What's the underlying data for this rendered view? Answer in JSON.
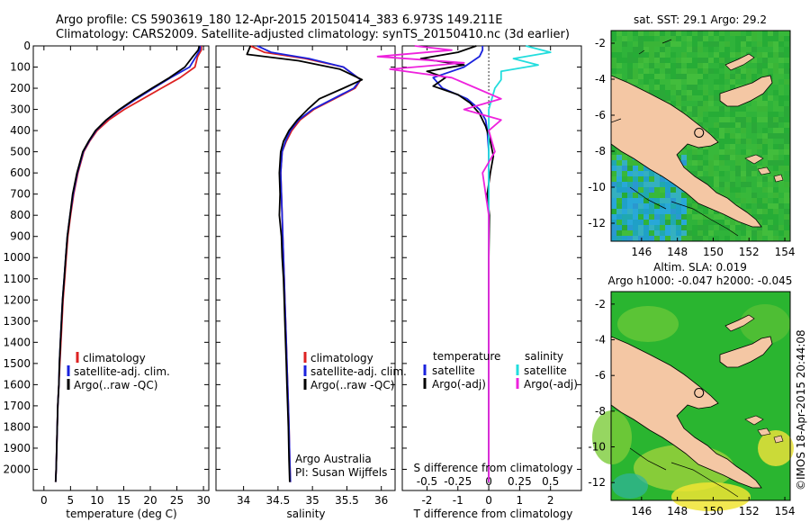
{
  "header": {
    "line1": "Argo profile: CS 5903619_180 12-Apr-2015 20150414_383 6.973S 149.211E",
    "line2": "Climatology: CARS2009. Satellite-adjusted climatology: synTS_20150410.nc (3d earlier)"
  },
  "colors": {
    "climatology": "#dd2222",
    "satellite": "#1a22dd",
    "argo": "#000000",
    "argo_s": "#ee22dd",
    "satellite_s": "#22dddd",
    "land": "#f4c7a4",
    "ocean": "#27b22f"
  },
  "credits": {
    "argo_australia": "Argo Australia",
    "pi": "PI: Susan Wijffels",
    "imos": "©IMOS 18-Apr-2015 20:44:08"
  },
  "chart_data": [
    {
      "type": "line",
      "id": "temperature",
      "xlabel": "temperature (deg C)",
      "ylabel": "",
      "xlim": [
        -2,
        31
      ],
      "ylim": [
        2100,
        0
      ],
      "xticks": [
        0,
        5,
        10,
        15,
        20,
        25,
        30
      ],
      "yticks": [
        0,
        100,
        200,
        300,
        400,
        500,
        600,
        700,
        800,
        900,
        1000,
        1100,
        1200,
        1300,
        1400,
        1500,
        1600,
        1700,
        1800,
        1900,
        2000
      ],
      "legend": [
        "climatology",
        "satellite-adj. clim.",
        "Argo(..raw -QC)"
      ],
      "series": [
        {
          "name": "climatology",
          "color": "#dd2222",
          "x": [
            29.6,
            29.6,
            28.9,
            28.4,
            25.6,
            22.1,
            18.6,
            15.1,
            12.2,
            10.0,
            8.6,
            7.5,
            6.4,
            5.6,
            5.0,
            4.5,
            4.2,
            3.9,
            3.6,
            3.4,
            3.2,
            3.0,
            2.8,
            2.6,
            2.5,
            2.4,
            2.3,
            2.2
          ],
          "y": [
            0,
            20,
            50,
            100,
            150,
            200,
            250,
            300,
            350,
            400,
            450,
            500,
            600,
            700,
            800,
            900,
            1000,
            1100,
            1200,
            1300,
            1400,
            1500,
            1600,
            1700,
            1800,
            1900,
            2000,
            2060
          ]
        },
        {
          "name": "satellite-adj. clim.",
          "color": "#1a22dd",
          "x": [
            29.4,
            29.3,
            28.6,
            27.4,
            23.8,
            20.6,
            17.4,
            14.4,
            11.8,
            9.8,
            8.5,
            7.4,
            6.3,
            5.5,
            4.9,
            4.4,
            4.1,
            3.8,
            3.5,
            3.3,
            3.1,
            2.9,
            2.8,
            2.6,
            2.5,
            2.4,
            2.3,
            2.2
          ],
          "y": [
            0,
            20,
            50,
            100,
            150,
            200,
            250,
            300,
            350,
            400,
            450,
            500,
            600,
            700,
            800,
            900,
            1000,
            1100,
            1200,
            1300,
            1400,
            1500,
            1600,
            1700,
            1800,
            1900,
            2000,
            2060
          ]
        },
        {
          "name": "Argo(..raw -QC)",
          "color": "#000000",
          "x": [
            29.2,
            29.0,
            28.0,
            26.5,
            23.6,
            20.3,
            17.1,
            14.2,
            11.7,
            9.7,
            8.4,
            7.3,
            6.2,
            5.4,
            4.9,
            4.4,
            4.1,
            3.8,
            3.5,
            3.3,
            3.1,
            2.9,
            2.8,
            2.6,
            2.5,
            2.4,
            2.3,
            2.2
          ],
          "y": [
            0,
            20,
            50,
            100,
            150,
            200,
            250,
            300,
            350,
            400,
            450,
            500,
            600,
            700,
            800,
            900,
            1000,
            1100,
            1200,
            1300,
            1400,
            1500,
            1600,
            1700,
            1800,
            1900,
            2000,
            2060
          ]
        }
      ]
    },
    {
      "type": "line",
      "id": "salinity",
      "xlabel": "salinity",
      "xlim": [
        33.6,
        36.2
      ],
      "ylim": [
        2100,
        0
      ],
      "xticks": [
        34,
        34.5,
        35,
        35.5,
        36
      ],
      "legend": [
        "climatology",
        "satellite-adj. clim.",
        "Argo(..raw -QC)"
      ],
      "series": [
        {
          "name": "climatology",
          "color": "#dd2222",
          "x": [
            34.1,
            34.3,
            34.9,
            35.45,
            35.7,
            35.62,
            35.32,
            35.02,
            34.82,
            34.7,
            34.62,
            34.56,
            34.54,
            34.55,
            34.56,
            34.57,
            34.58,
            34.59,
            34.6,
            34.61,
            34.62,
            34.63,
            34.64,
            34.65,
            34.66,
            34.67,
            34.68
          ],
          "y": [
            0,
            30,
            60,
            100,
            160,
            200,
            250,
            300,
            350,
            400,
            450,
            500,
            600,
            700,
            800,
            900,
            1000,
            1100,
            1200,
            1300,
            1400,
            1500,
            1600,
            1700,
            1800,
            1950,
            2060
          ]
        },
        {
          "name": "satellite-adj. clim.",
          "color": "#1a22dd",
          "x": [
            34.2,
            34.4,
            34.95,
            35.45,
            35.7,
            35.6,
            35.3,
            35.0,
            34.8,
            34.68,
            34.61,
            34.56,
            34.54,
            34.55,
            34.56,
            34.57,
            34.58,
            34.59,
            34.6,
            34.61,
            34.62,
            34.63,
            34.64,
            34.65,
            34.66,
            34.67,
            34.68
          ],
          "y": [
            0,
            30,
            60,
            100,
            160,
            200,
            250,
            300,
            350,
            400,
            450,
            500,
            600,
            700,
            800,
            900,
            1000,
            1100,
            1200,
            1300,
            1400,
            1500,
            1600,
            1700,
            1800,
            1950,
            2060
          ]
        },
        {
          "name": "Argo(..raw -QC)",
          "color": "#000000",
          "x": [
            34.1,
            34.05,
            34.8,
            35.4,
            35.72,
            35.45,
            35.1,
            34.93,
            34.78,
            34.66,
            34.58,
            34.54,
            34.52,
            34.53,
            34.52,
            34.55,
            34.56,
            34.58,
            34.59,
            34.6,
            34.61,
            34.62,
            34.63,
            34.64,
            34.65,
            34.66,
            34.67
          ],
          "y": [
            0,
            40,
            70,
            110,
            160,
            200,
            250,
            300,
            350,
            400,
            450,
            500,
            600,
            700,
            800,
            900,
            1000,
            1100,
            1200,
            1300,
            1400,
            1500,
            1600,
            1700,
            1800,
            1950,
            2060
          ]
        }
      ]
    },
    {
      "type": "line",
      "id": "differences",
      "xlabel_top": "S difference from climatology",
      "xlabel": "T difference from climatology",
      "t_xlim": [
        -2.8,
        3.0
      ],
      "t_xticks": [
        -2,
        -1,
        0,
        1,
        2
      ],
      "s_xticks": [
        -0.5,
        -0.25,
        0,
        0.25,
        0.5
      ],
      "s_xlabels": [
        "-0.5",
        "-0.25",
        "0",
        "0.25",
        "0.5"
      ],
      "ylim": [
        2100,
        0
      ],
      "legend_temperature_title": "temperature",
      "legend_salinity_title": "salinity",
      "legend_left": [
        "satellite",
        "Argo(-adj)"
      ],
      "legend_right": [
        "satellite",
        "Argo(-adj)"
      ],
      "series": [
        {
          "name": "T satellite",
          "color": "#1a22dd",
          "x": [
            -0.2,
            -0.2,
            -0.3,
            -0.8,
            -1.8,
            -1.5,
            -0.7,
            -0.3,
            -0.1,
            -0.05,
            0,
            0,
            0,
            0,
            0,
            0,
            0,
            0
          ],
          "y": [
            0,
            20,
            50,
            100,
            150,
            200,
            250,
            300,
            350,
            400,
            500,
            600,
            800,
            1000,
            1300,
            1600,
            1900,
            2060
          ]
        },
        {
          "name": "T Argo(-adj)",
          "color": "#000000",
          "x": [
            -0.4,
            -1.0,
            -2.2,
            -0.8,
            -2.0,
            -1.4,
            -1.8,
            -1.0,
            -0.6,
            -0.3,
            -0.1,
            0.05,
            0.15,
            0.05,
            -0.05,
            0.02,
            0,
            0,
            0,
            0,
            0
          ],
          "y": [
            0,
            30,
            60,
            90,
            120,
            150,
            190,
            230,
            270,
            320,
            380,
            450,
            520,
            600,
            700,
            800,
            1000,
            1200,
            1500,
            1800,
            2060
          ]
        },
        {
          "name": "S satellite",
          "color": "#22dddd",
          "x": [
            0.3,
            0.5,
            0.2,
            0.4,
            0.1,
            0.1,
            0.05,
            0,
            0,
            0,
            0,
            0,
            0,
            0,
            0
          ],
          "y": [
            0,
            30,
            60,
            90,
            120,
            160,
            200,
            300,
            400,
            600,
            900,
            1200,
            1500,
            1800,
            2060
          ]
        },
        {
          "name": "S Argo(-adj)",
          "color": "#ee22dd",
          "x": [
            -0.6,
            -0.3,
            -0.9,
            -0.2,
            -0.8,
            -0.3,
            -0.1,
            0.1,
            -0.2,
            0.1,
            0,
            0.05,
            -0.05,
            0,
            0,
            0,
            0
          ],
          "y": [
            0,
            20,
            50,
            80,
            110,
            150,
            200,
            250,
            300,
            350,
            400,
            500,
            600,
            800,
            1100,
            1500,
            2060
          ]
        }
      ]
    },
    {
      "type": "heatmap",
      "id": "sst_map",
      "title": "sat. SST: 29.1 Argo: 29.2",
      "xlim": [
        144.3,
        154.3
      ],
      "ylim": [
        -13,
        -1.3
      ],
      "xticks": [
        146,
        148,
        150,
        152,
        154
      ],
      "yticks": [
        -2,
        -4,
        -6,
        -8,
        -10,
        -12
      ],
      "argo_position": [
        149.211,
        -6.973
      ]
    },
    {
      "type": "heatmap",
      "id": "sla_map",
      "title1": "Altim. SLA: 0.019",
      "title2": "Argo h1000: -0.047 h2000: -0.045",
      "xlim": [
        144.3,
        154.3
      ],
      "ylim": [
        -13,
        -1.3
      ],
      "xticks": [
        146,
        148,
        150,
        152,
        154
      ],
      "yticks": [
        -2,
        -4,
        -6,
        -8,
        -10,
        -12
      ],
      "argo_position": [
        149.211,
        -6.973
      ]
    }
  ]
}
